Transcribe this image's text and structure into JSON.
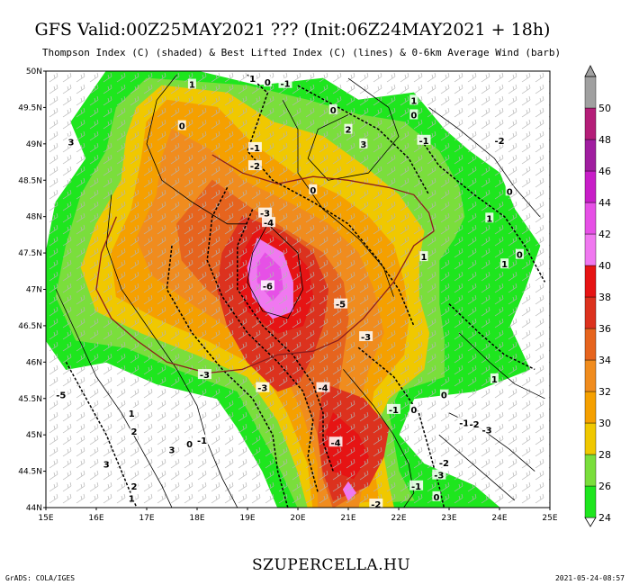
{
  "header": {
    "title": "GFS Valid:00Z25MAY2021 ??? (Init:06Z24MAY2021 + 18h)",
    "subtitle": "Thompson Index (C) (shaded) & Best Lifted Index (C) (lines) & 0-6km Average Wind (barb)"
  },
  "footer": {
    "site": "SZUPERCELLA.HU",
    "credit_left": "GrADS: COLA/IGES",
    "credit_right": "2021-05-24-08:57"
  },
  "map": {
    "lat_labels": [
      "50N",
      "49.5N",
      "49N",
      "48.5N",
      "48N",
      "47.5N",
      "47N",
      "46.5N",
      "46N",
      "45.5N",
      "45N",
      "44.5N",
      "44N"
    ],
    "lon_labels": [
      "15E",
      "16E",
      "17E",
      "18E",
      "19E",
      "20E",
      "21E",
      "22E",
      "23E",
      "24E",
      "25E"
    ]
  },
  "colorbar": {
    "levels": [
      {
        "label": "24",
        "color": "#1ee61e"
      },
      {
        "label": "26",
        "color": "#7ade3c"
      },
      {
        "label": "28",
        "color": "#f0c800"
      },
      {
        "label": "30",
        "color": "#f5a000"
      },
      {
        "label": "32",
        "color": "#f08c1e"
      },
      {
        "label": "34",
        "color": "#e6641e"
      },
      {
        "label": "36",
        "color": "#dc321e"
      },
      {
        "label": "38",
        "color": "#e61414"
      },
      {
        "label": "40",
        "color": "#f078f0"
      },
      {
        "label": "42",
        "color": "#e650e6"
      },
      {
        "label": "44",
        "color": "#c81ec8"
      },
      {
        "label": "46",
        "color": "#a01ea0"
      },
      {
        "label": "48",
        "color": "#b41e78"
      },
      {
        "label": "50",
        "color": "#a0a0a0"
      }
    ]
  },
  "contour_labels": [
    {
      "t": "-1",
      "lat": 49.83,
      "lon": 19.75
    },
    {
      "t": "0",
      "lat": 49.85,
      "lon": 19.4
    },
    {
      "t": "1",
      "lat": 49.82,
      "lon": 17.9
    },
    {
      "t": "1",
      "lat": 49.9,
      "lon": 19.1
    },
    {
      "t": "1",
      "lat": 49.6,
      "lon": 22.3
    },
    {
      "t": "0",
      "lat": 49.4,
      "lon": 22.3
    },
    {
      "t": "-1",
      "lat": 49.05,
      "lon": 22.5
    },
    {
      "t": "0",
      "lat": 49.47,
      "lon": 20.7
    },
    {
      "t": "0",
      "lat": 49.25,
      "lon": 17.7
    },
    {
      "t": "3",
      "lat": 49.03,
      "lon": 15.5
    },
    {
      "t": "-1",
      "lat": 48.95,
      "lon": 19.15
    },
    {
      "t": "-2",
      "lat": 48.7,
      "lon": 19.15
    },
    {
      "t": "2",
      "lat": 49.2,
      "lon": 21.0
    },
    {
      "t": "3",
      "lat": 49.0,
      "lon": 21.3
    },
    {
      "t": "-2",
      "lat": 49.05,
      "lon": 24.0
    },
    {
      "t": "0",
      "lat": 48.37,
      "lon": 20.3
    },
    {
      "t": "-3",
      "lat": 48.05,
      "lon": 19.35
    },
    {
      "t": "-4",
      "lat": 47.92,
      "lon": 19.42
    },
    {
      "t": "0",
      "lat": 48.35,
      "lon": 24.2
    },
    {
      "t": "1",
      "lat": 47.98,
      "lon": 23.8
    },
    {
      "t": "1",
      "lat": 47.45,
      "lon": 22.5
    },
    {
      "t": "0",
      "lat": 47.48,
      "lon": 24.4
    },
    {
      "t": "1",
      "lat": 47.35,
      "lon": 24.1
    },
    {
      "t": "-6",
      "lat": 47.05,
      "lon": 19.4
    },
    {
      "t": "-5",
      "lat": 46.8,
      "lon": 20.85
    },
    {
      "t": "-3",
      "lat": 46.35,
      "lon": 21.35
    },
    {
      "t": "-3",
      "lat": 45.83,
      "lon": 18.15
    },
    {
      "t": "-3",
      "lat": 45.65,
      "lon": 19.3
    },
    {
      "t": "-4",
      "lat": 45.65,
      "lon": 20.5
    },
    {
      "t": "1",
      "lat": 45.77,
      "lon": 23.9
    },
    {
      "t": "0",
      "lat": 45.55,
      "lon": 22.9
    },
    {
      "t": "-1",
      "lat": 45.35,
      "lon": 21.9
    },
    {
      "t": "0",
      "lat": 45.35,
      "lon": 22.3
    },
    {
      "t": "-5",
      "lat": 45.55,
      "lon": 15.3
    },
    {
      "t": "1",
      "lat": 45.3,
      "lon": 16.7
    },
    {
      "t": "2",
      "lat": 45.05,
      "lon": 16.75
    },
    {
      "t": "-1",
      "lat": 45.17,
      "lon": 23.3
    },
    {
      "t": "-2",
      "lat": 45.15,
      "lon": 23.5
    },
    {
      "t": "-3",
      "lat": 45.07,
      "lon": 23.75
    },
    {
      "t": "3",
      "lat": 44.8,
      "lon": 17.5
    },
    {
      "t": "-1",
      "lat": 44.93,
      "lon": 18.1
    },
    {
      "t": "0",
      "lat": 44.88,
      "lon": 17.85
    },
    {
      "t": "-4",
      "lat": 44.9,
      "lon": 20.75
    },
    {
      "t": "3",
      "lat": 44.6,
      "lon": 16.2
    },
    {
      "t": "2",
      "lat": 44.3,
      "lon": 16.75
    },
    {
      "t": "1",
      "lat": 44.13,
      "lon": 16.7
    },
    {
      "t": "-2",
      "lat": 44.62,
      "lon": 22.9
    },
    {
      "t": "-3",
      "lat": 44.45,
      "lon": 22.8
    },
    {
      "t": "0",
      "lat": 44.15,
      "lon": 22.75
    },
    {
      "t": "-1",
      "lat": 44.3,
      "lon": 22.35
    },
    {
      "t": "-2",
      "lat": 44.05,
      "lon": 21.55
    }
  ]
}
